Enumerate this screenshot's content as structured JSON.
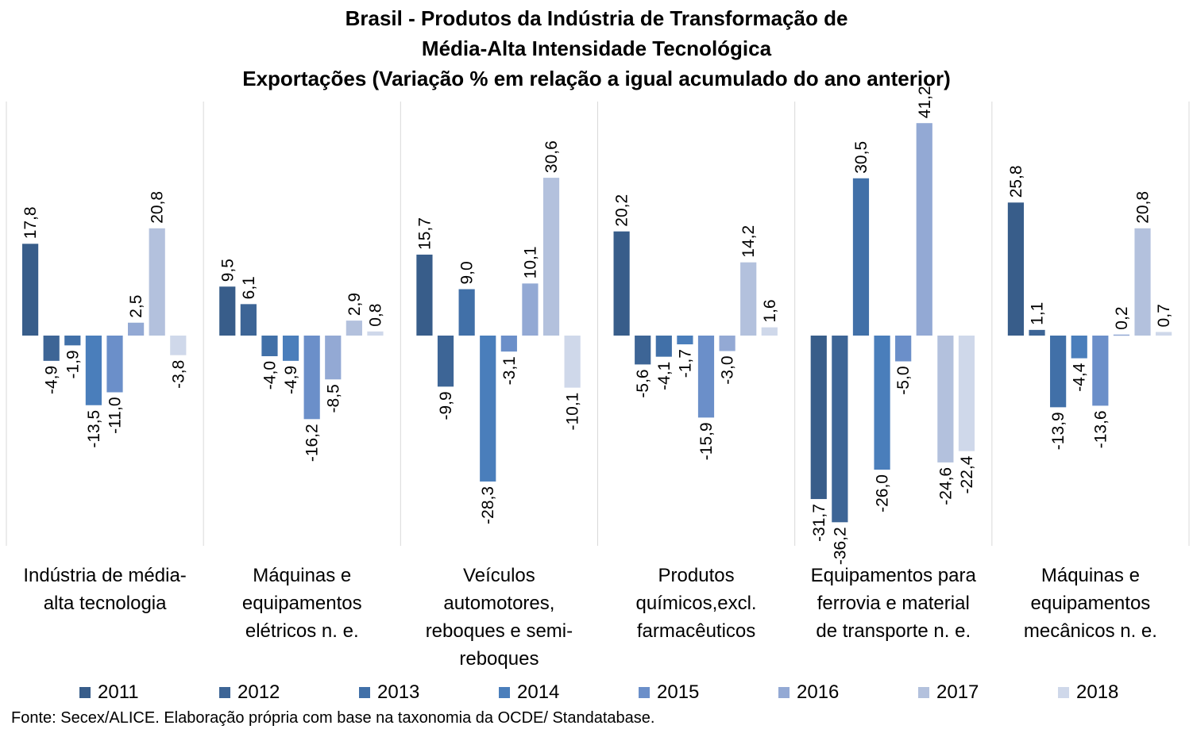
{
  "chart_data": {
    "type": "bar",
    "title": [
      "Brasil - Produtos da Indústria de Transformação de",
      "Média-Alta Intensidade Tecnológica",
      "Exportações (Variação % em relação a igual acumulado do ano anterior)"
    ],
    "categories": [
      "Indústria de média-alta tecnologia",
      "Máquinas e equipamentos elétricos n. e.",
      "Veículos automotores, reboques e semi-reboques",
      "Produtos químicos,excl. farmacêuticos",
      "Equipamentos para ferrovia e material de transporte n. e.",
      "Máquinas e equipamentos mecânicos  n. e."
    ],
    "category_lines": [
      [
        "Indústria de média-",
        "alta tecnologia"
      ],
      [
        "Máquinas e",
        "equipamentos",
        "elétricos n. e."
      ],
      [
        "Veículos",
        "automotores,",
        "reboques e semi-",
        "reboques"
      ],
      [
        "Produtos",
        "químicos,excl.",
        "farmacêuticos"
      ],
      [
        "Equipamentos para",
        "ferrovia e material",
        "de transporte n. e."
      ],
      [
        "Máquinas e",
        "equipamentos",
        "mecânicos  n. e."
      ]
    ],
    "series": [
      {
        "name": "2011",
        "color": "#385d8a",
        "values": [
          17.8,
          9.5,
          15.7,
          20.2,
          -31.7,
          25.8
        ],
        "labels": [
          "17,8",
          "9,5",
          "15,7",
          "20,2",
          "-31,7",
          "25,8"
        ]
      },
      {
        "name": "2012",
        "color": "#3d6596",
        "values": [
          -4.9,
          6.1,
          -9.9,
          -5.6,
          -36.2,
          1.1
        ],
        "labels": [
          "-4,9",
          "6,1",
          "-9,9",
          "-5,6",
          "-36,2",
          "1,1"
        ]
      },
      {
        "name": "2013",
        "color": "#4170a8",
        "values": [
          -1.9,
          -4.0,
          9.0,
          -4.1,
          30.5,
          -13.9
        ],
        "labels": [
          "-1,9",
          "-4,0",
          "9,0",
          "-4,1",
          "30,5",
          "-13,9"
        ]
      },
      {
        "name": "2014",
        "color": "#4a7ebb",
        "values": [
          -13.5,
          -4.9,
          -28.3,
          -1.7,
          -26.0,
          -4.4
        ],
        "labels": [
          "-13,5",
          "-4,9",
          "-28,3",
          "-1,7",
          "-26,0",
          "-4,4"
        ]
      },
      {
        "name": "2015",
        "color": "#6b8fc9",
        "values": [
          -11.0,
          -16.2,
          -3.1,
          -15.9,
          -5.0,
          -13.6
        ],
        "labels": [
          "-11,0",
          "-16,2",
          "-3,1",
          "-15,9",
          "-5,0",
          "-13,6"
        ]
      },
      {
        "name": "2016",
        "color": "#93a9d4",
        "values": [
          2.5,
          -8.5,
          10.1,
          -3.0,
          41.2,
          0.2
        ],
        "labels": [
          "2,5",
          "-8,5",
          "10,1",
          "-3,0",
          "41,2",
          "0,2"
        ]
      },
      {
        "name": "2017",
        "color": "#b3c1dd",
        "values": [
          20.8,
          2.9,
          30.6,
          14.2,
          -24.6,
          20.8
        ],
        "labels": [
          "20,8",
          "2,9",
          "30,6",
          "14,2",
          "-24,6",
          "20,8"
        ]
      },
      {
        "name": "2018",
        "color": "#cfd8ea",
        "values": [
          -3.8,
          0.8,
          -10.1,
          1.6,
          -22.4,
          0.7
        ],
        "labels": [
          "-3,8",
          "0,8",
          "-10,1",
          "1,6",
          "-22,4",
          "0,7"
        ]
      }
    ],
    "grid": false,
    "legend_position": "bottom",
    "source": "Fonte: Secex/ALICE. Elaboração própria com base na taxonomia da OCDE/ Standatabase."
  }
}
